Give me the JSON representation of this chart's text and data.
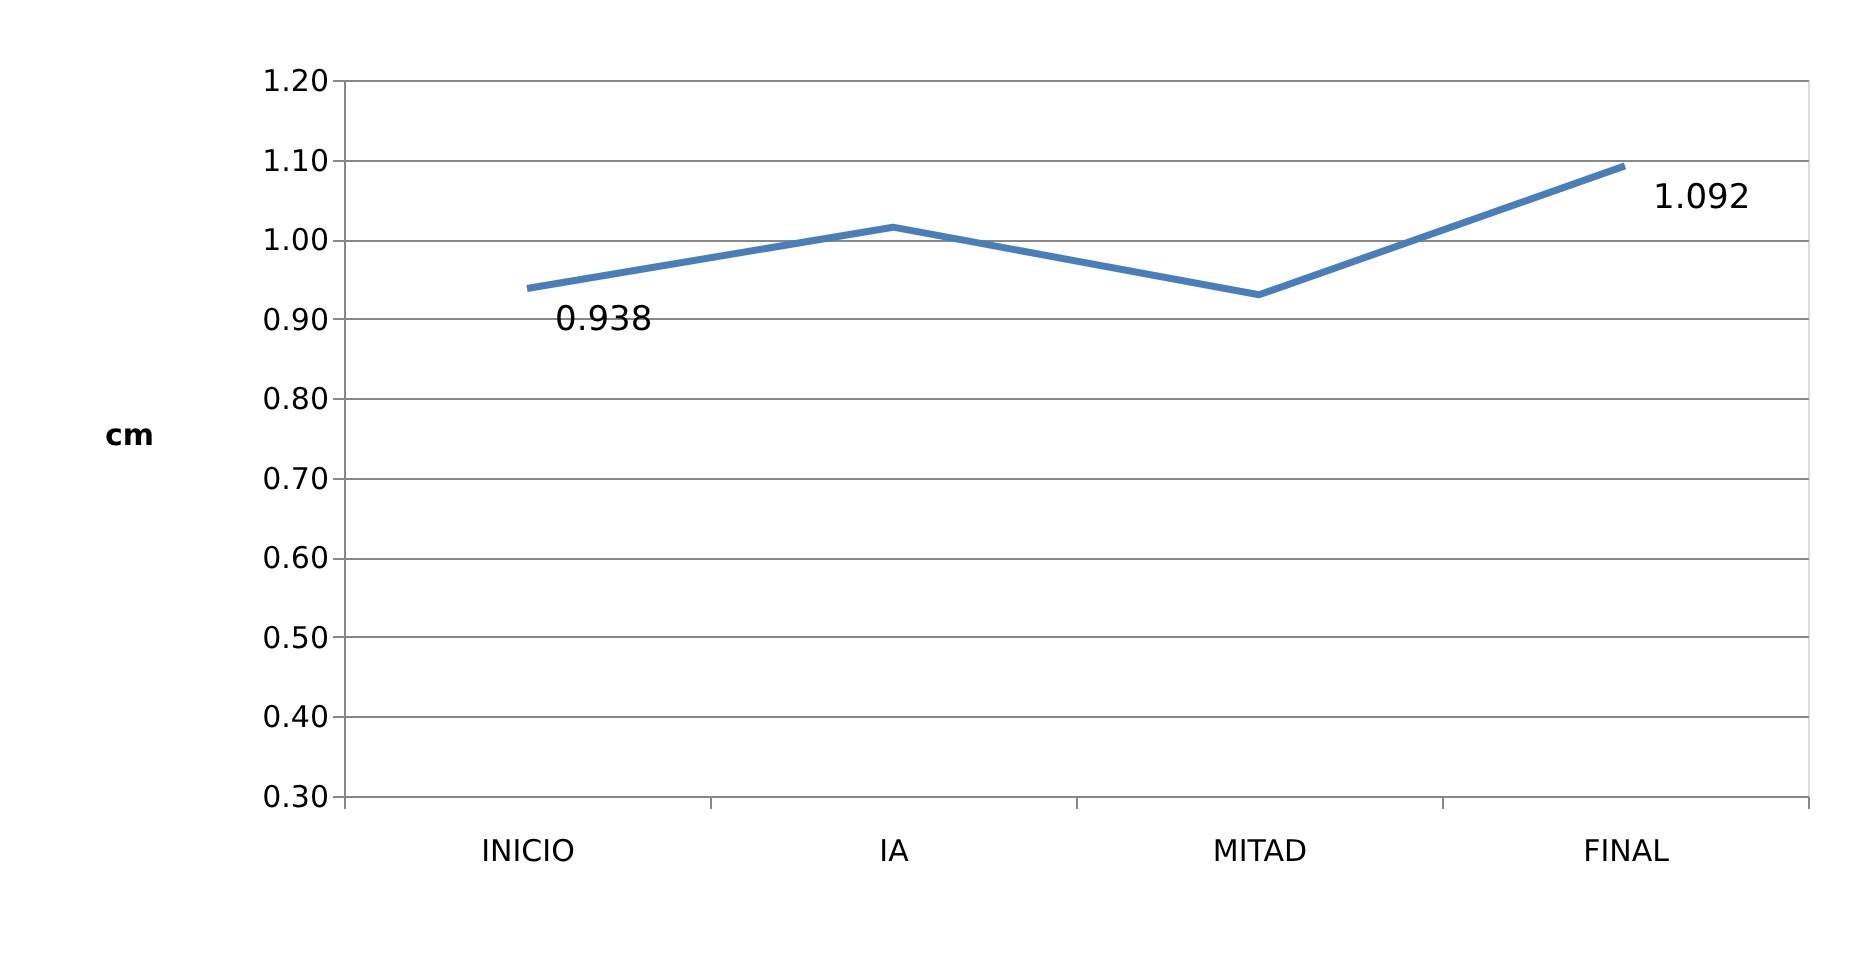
{
  "chart_data": {
    "type": "line",
    "ylabel": "cm",
    "categories": [
      "INICIO",
      "IA",
      "MITAD",
      "FINAL"
    ],
    "series": [
      {
        "color": "#4a7ebb",
        "values": [
          0.938,
          1.015,
          0.93,
          1.092
        ],
        "value_labels": [
          "0.938",
          null,
          null,
          "1.092"
        ]
      }
    ],
    "ylim": [
      0.3,
      1.2
    ],
    "yticks": [
      {
        "value": 0.3,
        "label": "0.30"
      },
      {
        "value": 0.4,
        "label": "0.40"
      },
      {
        "value": 0.5,
        "label": "0.50"
      },
      {
        "value": 0.6,
        "label": "0.60"
      },
      {
        "value": 0.7,
        "label": "0.70"
      },
      {
        "value": 0.8,
        "label": "0.80"
      },
      {
        "value": 0.9,
        "label": "0.90"
      },
      {
        "value": 1.0,
        "label": "1.00"
      },
      {
        "value": 1.1,
        "label": "1.10"
      },
      {
        "value": 1.2,
        "label": "1.20"
      }
    ],
    "grid": "y",
    "marker": "none",
    "line_style": "solid"
  }
}
